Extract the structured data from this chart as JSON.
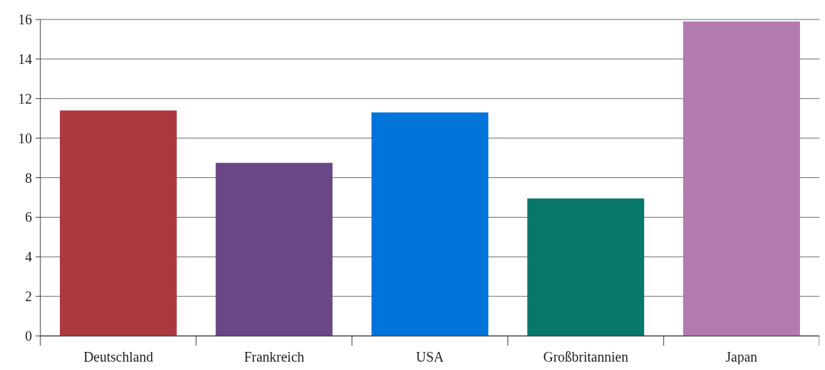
{
  "chart_data": {
    "type": "bar",
    "categories": [
      "Deutschland",
      "Frankreich",
      "USA",
      "Großbritannien",
      "Japan"
    ],
    "values": [
      11.4,
      8.75,
      11.3,
      6.95,
      15.9
    ],
    "colors": [
      "#ad3940",
      "#6a4787",
      "#0074d9",
      "#077869",
      "#b37ab0"
    ],
    "ylim": [
      0,
      16
    ],
    "yticks": [
      0,
      2,
      4,
      6,
      8,
      10,
      12,
      14,
      16
    ],
    "grid": "y"
  }
}
